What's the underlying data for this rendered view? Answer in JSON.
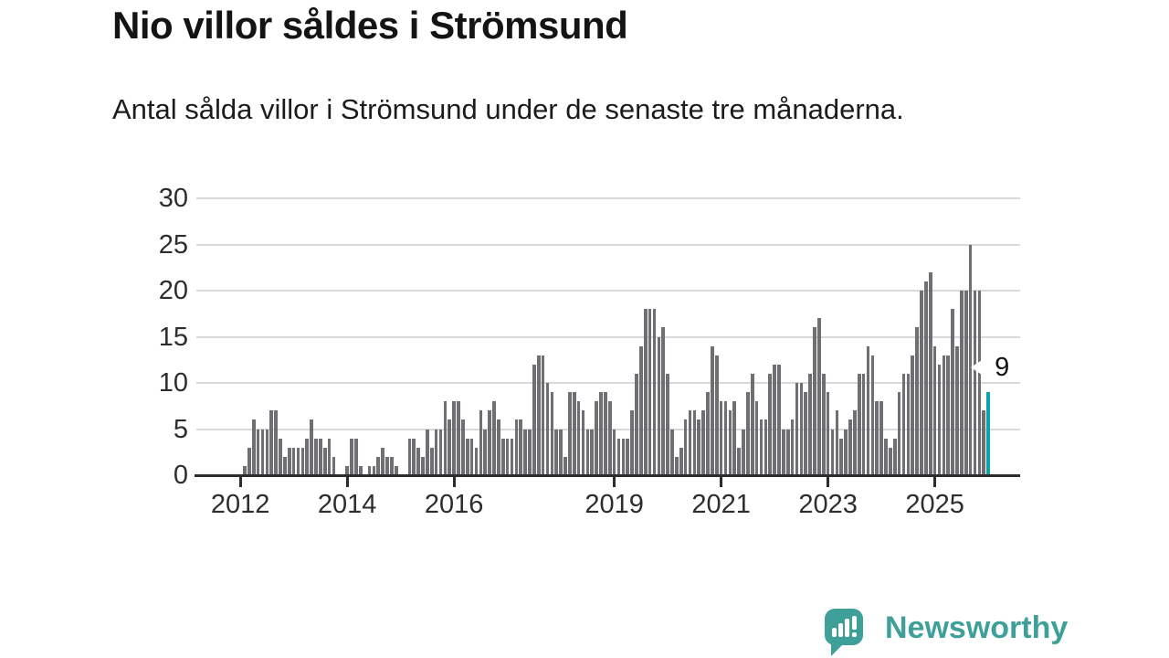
{
  "header": {
    "title": "Nio villor såldes i Strömsund",
    "subtitle": "Antal sålda villor i Strömsund under de senaste tre månaderna."
  },
  "chart_data": {
    "type": "bar",
    "title": "Nio villor såldes i Strömsund",
    "subtitle": "Antal sålda villor i Strömsund under de senaste tre månaderna.",
    "xlabel": "",
    "ylabel": "",
    "ylim": [
      0,
      30
    ],
    "yticks": [
      0,
      5,
      10,
      15,
      20,
      25,
      30
    ],
    "xtick_years": [
      2012,
      2014,
      2016,
      2019,
      2021,
      2023,
      2025
    ],
    "grid": "horizontal",
    "start_month": "2012-02",
    "values": [
      1,
      3,
      6,
      5,
      5,
      5,
      7,
      7,
      4,
      2,
      3,
      3,
      3,
      3,
      4,
      6,
      4,
      4,
      3,
      4,
      2,
      0,
      0,
      1,
      4,
      4,
      1,
      0,
      1,
      1,
      2,
      3,
      2,
      2,
      1,
      0,
      0,
      4,
      4,
      3,
      2,
      5,
      3,
      5,
      5,
      8,
      6,
      8,
      8,
      6,
      4,
      4,
      3,
      7,
      5,
      7,
      8,
      6,
      4,
      4,
      4,
      6,
      6,
      5,
      5,
      12,
      13,
      13,
      10,
      9,
      5,
      5,
      2,
      9,
      9,
      8,
      7,
      5,
      5,
      8,
      9,
      9,
      8,
      5,
      4,
      4,
      4,
      7,
      11,
      14,
      18,
      18,
      18,
      15,
      16,
      11,
      5,
      2,
      3,
      6,
      7,
      7,
      6,
      7,
      9,
      14,
      13,
      8,
      8,
      7,
      8,
      3,
      5,
      9,
      11,
      8,
      6,
      6,
      11,
      12,
      12,
      5,
      5,
      6,
      10,
      10,
      9,
      11,
      16,
      17,
      11,
      9,
      5,
      7,
      4,
      5,
      6,
      7,
      11,
      11,
      14,
      13,
      8,
      8,
      4,
      3,
      4,
      9,
      11,
      11,
      13,
      16,
      20,
      21,
      22,
      14,
      12,
      13,
      13,
      18,
      14,
      20,
      20,
      25,
      20,
      20,
      7,
      9
    ],
    "highlight": {
      "value": 9,
      "label": "9",
      "color": "#0aa5a5"
    },
    "bar_color": "#6e6e73",
    "grid_color": "#d9d9d9",
    "axis_color": "#2d2d2d",
    "label_color": "#2d2d2d"
  },
  "footer": {
    "brand": "Newsworthy",
    "logo_icon": "bar-chart-speech-bubble-icon",
    "logo_color": "#3f9f99"
  }
}
